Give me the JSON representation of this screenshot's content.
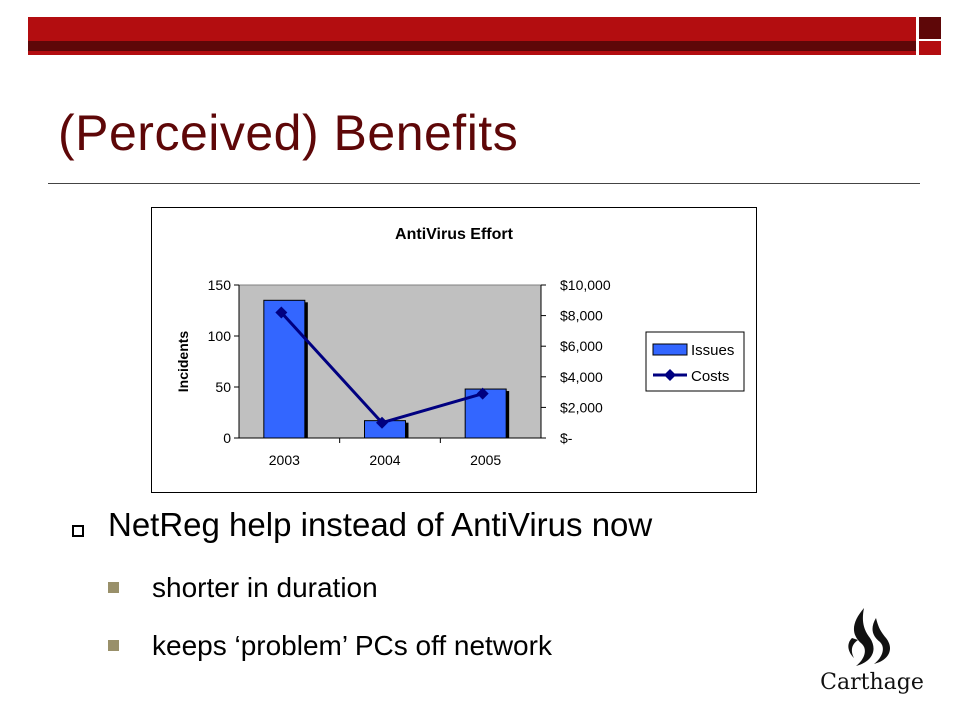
{
  "slide": {
    "title": "(Perceived) Benefits",
    "bullet_main": "NetReg help instead of AntiVirus now",
    "sub_bullets": [
      "shorter in duration",
      "keeps ‘problem’ PCs off network"
    ],
    "logo_text": "Carthage"
  },
  "colors": {
    "bar_red": "#b30d10",
    "bar_dark": "#5e0708",
    "title": "#5e0708",
    "bullet_square": "#99906a",
    "series_issues": "#3366ff",
    "series_costs": "#000080",
    "plot_area": "#c0c0c0"
  },
  "chart_data": {
    "type": "bar",
    "title": "AntiVirus Effort",
    "categories": [
      "2003",
      "2004",
      "2005"
    ],
    "ylabel": "Incidents",
    "ylim": [
      0,
      150
    ],
    "y_ticks": [
      "0",
      "50",
      "100",
      "150"
    ],
    "y2lim": [
      0,
      10000
    ],
    "y2_ticks": [
      "$-",
      "$2,000",
      "$4,000",
      "$6,000",
      "$8,000",
      "$10,000"
    ],
    "series": [
      {
        "name": "Issues",
        "type": "bar",
        "axis": "left",
        "values": [
          135,
          17,
          48
        ]
      },
      {
        "name": "Costs",
        "type": "line",
        "axis": "right",
        "values": [
          8200,
          1000,
          2900
        ]
      }
    ],
    "legend": "right",
    "grid": false
  }
}
